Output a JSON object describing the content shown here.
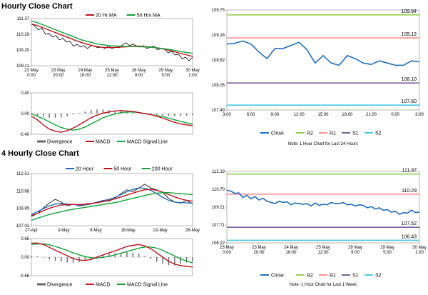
{
  "titles": {
    "hourly": "Hourly Close Chart",
    "four_hourly": "4 Hourly Close Chart"
  },
  "colors": {
    "close": "#1f6fc0",
    "ma_short": "#c0141c",
    "ma_mid": "#13a339",
    "ma_long": "#1f6fc0",
    "r2": "#92d050",
    "r1": "#ff8f8f",
    "s1": "#8060a0",
    "s2": "#4bc8e8",
    "macd": "#c0141c",
    "signal": "#13a339",
    "div": "#666666"
  },
  "chart_data": [
    {
      "id": "hourly_price",
      "type": "line",
      "yticks": [
        "111.37",
        "110.29",
        "109.20",
        "108.11"
      ],
      "ylim": [
        108.11,
        111.37
      ],
      "xticks": [
        [
          "23 May",
          "0:00"
        ],
        [
          "23 May",
          "20:00"
        ],
        [
          "24 May",
          "16:00"
        ],
        [
          "25 May",
          "12:00"
        ],
        [
          "28 May",
          "9:00"
        ],
        [
          "29 May",
          "5:00"
        ],
        [
          "30 May",
          "1:00"
        ]
      ],
      "legend": [
        "20 Hr MA",
        "50 Hrs MA"
      ],
      "series": [
        {
          "name": "Price",
          "values": [
            111.0,
            110.85,
            110.6,
            110.7,
            110.3,
            110.35,
            110.1,
            110.2,
            109.9,
            110.0,
            109.75,
            109.8,
            109.45,
            109.6,
            109.4,
            109.5,
            109.3,
            109.5,
            109.45,
            109.35,
            109.4,
            109.3,
            109.5,
            109.3,
            109.4,
            109.35,
            109.55,
            109.7,
            109.5,
            109.6,
            109.45,
            109.4,
            109.5,
            109.3,
            109.4,
            109.45,
            109.2,
            109.3,
            109.25,
            109.0,
            109.1,
            108.85,
            108.9,
            108.6,
            108.7,
            108.45,
            108.7
          ]
        },
        {
          "name": "20 Hr MA",
          "values": [
            111.0,
            110.9,
            110.75,
            110.6,
            110.45,
            110.3,
            110.15,
            110.0,
            109.85,
            109.72,
            109.6,
            109.5,
            109.42,
            109.38,
            109.36,
            109.37,
            109.4,
            109.42,
            109.45,
            109.47,
            109.45,
            109.42,
            109.38,
            109.32,
            109.24,
            109.15,
            109.05,
            108.95,
            108.85,
            108.75
          ]
        },
        {
          "name": "50 Hrs MA",
          "values": [
            111.2,
            111.1,
            110.95,
            110.8,
            110.65,
            110.5,
            110.35,
            110.2,
            110.05,
            109.9,
            109.8,
            109.7,
            109.6,
            109.55,
            109.5,
            109.48,
            109.46,
            109.45,
            109.44,
            109.43,
            109.42,
            109.4,
            109.37,
            109.33,
            109.28,
            109.22,
            109.15,
            109.08,
            109.02,
            108.97
          ]
        }
      ]
    },
    {
      "id": "hourly_macd",
      "type": "line",
      "yticks": [
        "0.40",
        "0.00",
        "-0.40"
      ],
      "ylim": [
        -0.4,
        0.4
      ],
      "legend": [
        "Divergence",
        "MACD",
        "MACD Signal Line"
      ],
      "series": [
        {
          "name": "MACD",
          "values": [
            -0.05,
            -0.12,
            -0.22,
            -0.3,
            -0.34,
            -0.36,
            -0.33,
            -0.28,
            -0.22,
            -0.15,
            -0.08,
            -0.03,
            0.01,
            0.03,
            0.05,
            0.06,
            0.05,
            0.04,
            0.02,
            0.0,
            -0.02,
            -0.05,
            -0.09,
            -0.13,
            -0.17,
            -0.2,
            -0.22,
            -0.23
          ]
        },
        {
          "name": "MACD Signal Line",
          "values": [
            0.0,
            -0.05,
            -0.1,
            -0.16,
            -0.22,
            -0.27,
            -0.3,
            -0.32,
            -0.3,
            -0.26,
            -0.2,
            -0.14,
            -0.08,
            -0.04,
            -0.01,
            0.02,
            0.03,
            0.03,
            0.02,
            0.0,
            -0.02,
            -0.04,
            -0.06,
            -0.09,
            -0.12,
            -0.15,
            -0.18,
            -0.2
          ]
        },
        {
          "name": "Divergence",
          "values": [
            -0.02,
            -0.04,
            -0.06,
            -0.08,
            -0.08,
            -0.07,
            -0.05,
            -0.02,
            0.01,
            0.04,
            0.07,
            0.08,
            0.08,
            0.07,
            0.06,
            0.05,
            0.03,
            0.02,
            0.0,
            -0.01,
            -0.02,
            -0.03,
            -0.04,
            -0.04,
            -0.05,
            -0.05,
            -0.04,
            -0.03
          ]
        }
      ]
    },
    {
      "id": "hourly_levels",
      "type": "line",
      "yticks": [
        "109.75",
        "109.18",
        "108.62",
        "108.05",
        "107.49"
      ],
      "ylim": [
        107.49,
        109.75
      ],
      "xticks": [
        "3:00",
        "6:00",
        "9:00",
        "12:00",
        "15:00",
        "18:00",
        "21:00",
        "0:00",
        "3:00"
      ],
      "levels": {
        "R2": 109.64,
        "R1": 109.12,
        "S1": 108.1,
        "S2": 107.6
      },
      "level_labels": {
        "R2": "109.64",
        "R1": "109.12",
        "S1": "108.10",
        "S2": "107.60"
      },
      "legend": [
        "Close",
        "R2",
        "R1",
        "S1",
        "S2"
      ],
      "note": "Note: 1 Hour Chart for Last 24 Hours",
      "series": [
        {
          "name": "Close",
          "values": [
            108.98,
            109.0,
            109.05,
            108.98,
            108.8,
            108.65,
            108.88,
            108.88,
            108.95,
            109.02,
            108.85,
            108.55,
            108.72,
            108.55,
            108.5,
            108.72,
            108.65,
            108.55,
            108.52,
            108.6,
            108.55,
            108.5,
            108.5,
            108.6,
            108.58
          ]
        }
      ]
    },
    {
      "id": "four_hourly_price",
      "type": "line",
      "yticks": [
        "112.51",
        "110.68",
        "108.85",
        "107.02"
      ],
      "ylim": [
        107.02,
        112.51
      ],
      "xticks": [
        "27-Apr",
        "3-May",
        "9-May",
        "16-May",
        "22-May",
        "28-May"
      ],
      "legend": [
        "20 Hour",
        "50 Hour",
        "200 Hour"
      ],
      "series": [
        {
          "name": "Price",
          "values": [
            108.0,
            108.3,
            108.9,
            109.4,
            109.8,
            109.5,
            109.1,
            109.3,
            109.1,
            109.2,
            109.3,
            109.5,
            109.7,
            109.6,
            109.9,
            110.4,
            110.8,
            110.6,
            111.0,
            111.4,
            111.0,
            110.8,
            110.5,
            109.9,
            109.5,
            109.4,
            109.7,
            109.3
          ]
        },
        {
          "name": "20 Hour",
          "values": [
            108.2,
            108.5,
            108.8,
            109.1,
            109.3,
            109.35,
            109.3,
            109.25,
            109.2,
            109.25,
            109.35,
            109.5,
            109.65,
            109.8,
            110.0,
            110.3,
            110.6,
            110.85,
            111.0,
            110.95,
            110.75,
            110.4,
            110.0,
            109.7,
            109.5,
            109.45,
            109.42,
            109.4
          ]
        },
        {
          "name": "50 Hour",
          "values": [
            108.1,
            108.3,
            108.6,
            108.85,
            109.05,
            109.2,
            109.25,
            109.25,
            109.25,
            109.3,
            109.35,
            109.45,
            109.55,
            109.7,
            109.85,
            110.05,
            110.25,
            110.45,
            110.65,
            110.8,
            110.85,
            110.75,
            110.55,
            110.3,
            110.05,
            109.85,
            109.7,
            109.6
          ]
        },
        {
          "name": "200 Hour",
          "values": [
            107.6,
            107.8,
            108.0,
            108.2,
            108.35,
            108.5,
            108.65,
            108.75,
            108.85,
            108.95,
            109.05,
            109.15,
            109.25,
            109.35,
            109.45,
            109.6,
            109.75,
            109.9,
            110.05,
            110.2,
            110.35,
            110.45,
            110.5,
            110.5,
            110.45,
            110.4,
            110.35,
            110.3
          ]
        }
      ]
    },
    {
      "id": "four_hourly_macd",
      "type": "line",
      "yticks": [
        "0.66",
        "0.00",
        "-0.66"
      ],
      "ylim": [
        -0.66,
        0.66
      ],
      "legend": [
        "Divergence",
        "MACD",
        "MACD Signal Line"
      ],
      "series": [
        {
          "name": "MACD",
          "values": [
            0.5,
            0.5,
            0.45,
            0.35,
            0.25,
            0.15,
            0.05,
            -0.05,
            -0.1,
            -0.12,
            -0.08,
            0.0,
            0.08,
            0.15,
            0.22,
            0.3,
            0.38,
            0.42,
            0.45,
            0.4,
            0.3,
            0.15,
            0.0,
            -0.15,
            -0.25,
            -0.3,
            -0.33,
            -0.35
          ]
        },
        {
          "name": "MACD Signal Line",
          "values": [
            0.45,
            0.47,
            0.47,
            0.44,
            0.38,
            0.31,
            0.24,
            0.15,
            0.08,
            0.02,
            -0.02,
            -0.03,
            -0.01,
            0.03,
            0.08,
            0.14,
            0.2,
            0.26,
            0.32,
            0.36,
            0.36,
            0.32,
            0.24,
            0.14,
            0.04,
            -0.06,
            -0.14,
            -0.2
          ]
        },
        {
          "name": "Divergence",
          "values": [
            0.05,
            0.03,
            -0.02,
            -0.09,
            -0.13,
            -0.16,
            -0.19,
            -0.2,
            -0.18,
            -0.14,
            -0.06,
            0.03,
            0.09,
            0.12,
            0.14,
            0.16,
            0.18,
            0.16,
            0.13,
            0.04,
            -0.06,
            -0.17,
            -0.24,
            -0.29,
            -0.29,
            -0.24,
            -0.19,
            -0.15
          ]
        }
      ]
    },
    {
      "id": "four_hourly_levels",
      "type": "line",
      "yticks": [
        "112.19",
        "110.70",
        "109.21",
        "107.71",
        "106.22"
      ],
      "ylim": [
        106.22,
        112.19
      ],
      "xticks": [
        [
          "23 May",
          "0:00"
        ],
        [
          "23 May",
          "20:00"
        ],
        [
          "24 May",
          "16:00"
        ],
        [
          "25 May",
          "12:00"
        ],
        [
          "28 May",
          "9:00"
        ],
        [
          "29 May",
          "5:00"
        ],
        [
          "30 May",
          "1:00"
        ]
      ],
      "levels": {
        "R2": 111.97,
        "R1": 110.29,
        "S1": 107.52,
        "S2": 106.43
      },
      "level_labels": {
        "R2": "111.97",
        "R1": "110.29",
        "S1": "107.52",
        "S2": "106.43"
      },
      "legend": [
        "Close",
        "R2",
        "R1",
        "S1",
        "S2"
      ],
      "note": "Note: 1 Hour Chart for Last 1 Week",
      "series": [
        {
          "name": "Close",
          "values": [
            110.6,
            110.55,
            110.35,
            110.4,
            110.0,
            110.2,
            109.9,
            110.1,
            109.8,
            109.95,
            109.7,
            109.6,
            109.5,
            109.7,
            109.6,
            109.65,
            109.4,
            109.55,
            109.5,
            109.45,
            109.5,
            109.3,
            109.55,
            109.35,
            109.45,
            109.4,
            109.6,
            109.5,
            109.5,
            109.6,
            109.4,
            109.45,
            109.3,
            109.4,
            109.35,
            109.15,
            109.25,
            109.05,
            109.15,
            108.95,
            109.0,
            108.8,
            108.85,
            108.6,
            108.75,
            108.7,
            108.95,
            108.75,
            108.8
          ]
        }
      ]
    }
  ]
}
